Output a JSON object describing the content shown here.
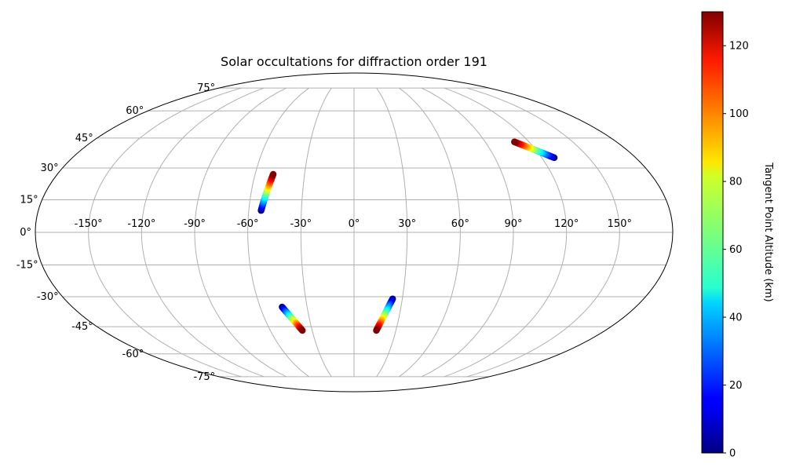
{
  "chart_data": {
    "type": "scatter",
    "projection": "mollweide",
    "title": "Solar occultations for diffraction order 191",
    "grid": true,
    "longitude_ticks": [
      "-150°",
      "-120°",
      "-90°",
      "-60°",
      "-30°",
      "0°",
      "30°",
      "60°",
      "90°",
      "120°",
      "150°"
    ],
    "latitude_ticks": [
      "75°",
      "60°",
      "45°",
      "30°",
      "15°",
      "0°",
      "-15°",
      "-30°",
      "-45°",
      "-60°",
      "-75°"
    ],
    "color_scale": "jet",
    "colorbar": {
      "label": "Tangent Point Altitude (km)",
      "range": [
        0,
        130
      ],
      "ticks": [
        "0",
        "20",
        "40",
        "60",
        "80",
        "100",
        "120"
      ]
    },
    "tracks": [
      {
        "lon_start": -53,
        "lat_start": 10,
        "alt_start": 0,
        "lon_end": -49,
        "lat_end": 27,
        "alt_end": 130
      },
      {
        "lon_start": 128,
        "lat_start": 35,
        "alt_start": 0,
        "lon_end": 110,
        "lat_end": 43,
        "alt_end": 130
      },
      {
        "lon_start": -46,
        "lat_start": -35,
        "alt_start": 0,
        "lon_end": -37,
        "lat_end": -47,
        "alt_end": 130
      },
      {
        "lon_start": 24,
        "lat_start": -31,
        "alt_start": 0,
        "lon_end": 16,
        "lat_end": -47,
        "alt_end": 130
      }
    ]
  }
}
